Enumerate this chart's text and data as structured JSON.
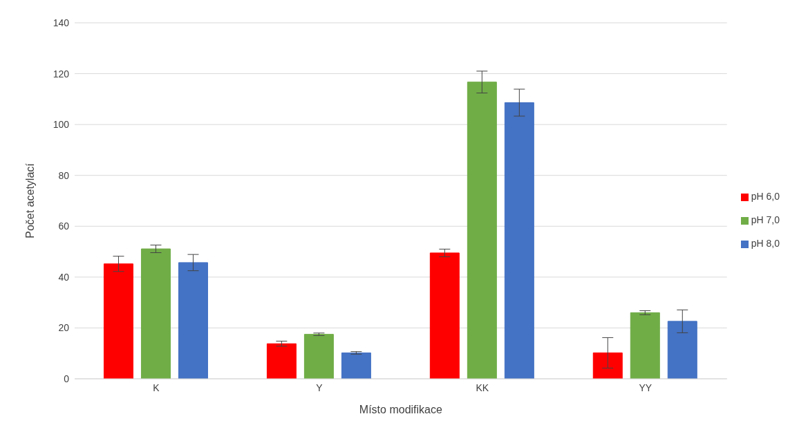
{
  "chart_data": {
    "type": "bar",
    "xlabel": "Místo modifikace",
    "ylabel": "Počet acetylací",
    "categories": [
      "K",
      "Y",
      "KK",
      "YY"
    ],
    "series": [
      {
        "name": "pH 6,0",
        "color": "#ff0000",
        "values": [
          45.2,
          13.8,
          49.5,
          10.2
        ],
        "errors": [
          3,
          1,
          1.5,
          6
        ]
      },
      {
        "name": "pH 7,0",
        "color": "#70ad47",
        "values": [
          51.1,
          17.5,
          116.7,
          26
        ],
        "errors": [
          1.5,
          0.5,
          4.3,
          0.8
        ]
      },
      {
        "name": "pH 8,0",
        "color": "#4472c4",
        "values": [
          45.7,
          10.2,
          108.6,
          22.6
        ],
        "errors": [
          3.2,
          0.5,
          5.3,
          4.5
        ]
      }
    ],
    "ylim": [
      0,
      140
    ],
    "yticks": [
      0,
      20,
      40,
      60,
      80,
      100,
      120,
      140
    ],
    "grid": "y",
    "legend": "right"
  }
}
